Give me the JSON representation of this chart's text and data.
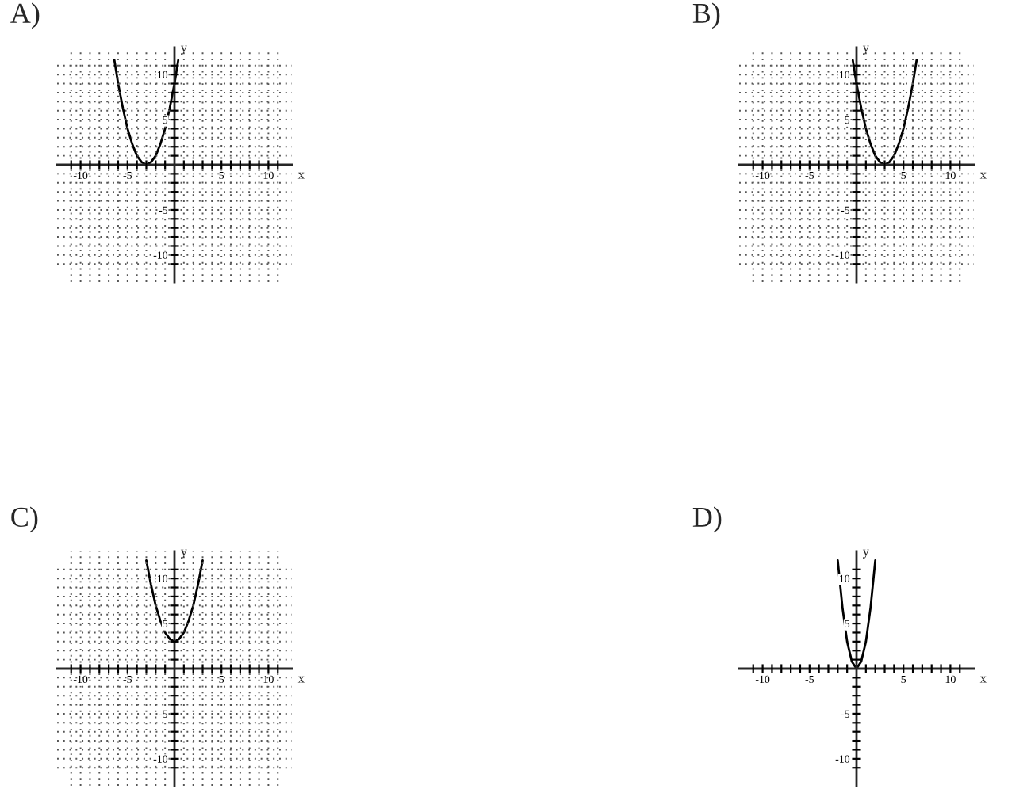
{
  "chart_data": [
    {
      "type": "line",
      "title": "A)",
      "xlabel": "x",
      "ylabel": "y",
      "grid": true,
      "legend": false,
      "xlim": [
        -12.5,
        12.5
      ],
      "ylim": [
        -13,
        13
      ],
      "xticks": [
        {
          "value": -11,
          "label": null
        },
        {
          "value": -10,
          "label": "-10"
        },
        {
          "value": -9,
          "label": null
        },
        {
          "value": -8,
          "label": null
        },
        {
          "value": -7,
          "label": null
        },
        {
          "value": -6,
          "label": null
        },
        {
          "value": -5,
          "label": "-5"
        },
        {
          "value": -4,
          "label": null
        },
        {
          "value": -3,
          "label": null
        },
        {
          "value": -2,
          "label": null
        },
        {
          "value": -1,
          "label": null
        },
        {
          "value": 1,
          "label": null
        },
        {
          "value": 2,
          "label": null
        },
        {
          "value": 3,
          "label": null
        },
        {
          "value": 4,
          "label": null
        },
        {
          "value": 5,
          "label": "5"
        },
        {
          "value": 6,
          "label": null
        },
        {
          "value": 7,
          "label": null
        },
        {
          "value": 8,
          "label": null
        },
        {
          "value": 9,
          "label": null
        },
        {
          "value": 10,
          "label": "10"
        },
        {
          "value": 11,
          "label": null
        }
      ],
      "yticks": [
        {
          "value": -11,
          "label": null
        },
        {
          "value": -10,
          "label": "-10"
        },
        {
          "value": -9,
          "label": null
        },
        {
          "value": -8,
          "label": null
        },
        {
          "value": -7,
          "label": null
        },
        {
          "value": -6,
          "label": null
        },
        {
          "value": -5,
          "label": "-5"
        },
        {
          "value": -4,
          "label": null
        },
        {
          "value": -3,
          "label": null
        },
        {
          "value": -2,
          "label": null
        },
        {
          "value": -1,
          "label": null
        },
        {
          "value": 1,
          "label": null
        },
        {
          "value": 2,
          "label": null
        },
        {
          "value": 3,
          "label": null
        },
        {
          "value": 4,
          "label": null
        },
        {
          "value": 5,
          "label": "5"
        },
        {
          "value": 6,
          "label": null
        },
        {
          "value": 7,
          "label": null
        },
        {
          "value": 8,
          "label": null
        },
        {
          "value": 9,
          "label": null
        },
        {
          "value": 10,
          "label": "10"
        },
        {
          "value": 11,
          "label": null
        }
      ],
      "series": [
        {
          "color": "#000000",
          "x": [
            -6.4,
            -6,
            -5.5,
            -5,
            -4.5,
            -4,
            -3.5,
            -3,
            -2.5,
            -2,
            -1.5,
            -1,
            -0.5,
            0,
            0.4
          ],
          "values": [
            11.6,
            9,
            6.3,
            4,
            2.3,
            1,
            0.3,
            0,
            0.3,
            1,
            2.3,
            4,
            6.3,
            9,
            11.6
          ]
        }
      ]
    },
    {
      "type": "line",
      "title": "B)",
      "xlabel": "x",
      "ylabel": "y",
      "grid": true,
      "legend": false,
      "xlim": [
        -12.5,
        12.5
      ],
      "ylim": [
        -13,
        13
      ],
      "xticks": [
        {
          "value": -11,
          "label": null
        },
        {
          "value": -10,
          "label": "-10"
        },
        {
          "value": -9,
          "label": null
        },
        {
          "value": -8,
          "label": null
        },
        {
          "value": -7,
          "label": null
        },
        {
          "value": -6,
          "label": null
        },
        {
          "value": -5,
          "label": "-5"
        },
        {
          "value": -4,
          "label": null
        },
        {
          "value": -3,
          "label": null
        },
        {
          "value": -2,
          "label": null
        },
        {
          "value": -1,
          "label": null
        },
        {
          "value": 1,
          "label": null
        },
        {
          "value": 2,
          "label": null
        },
        {
          "value": 3,
          "label": null
        },
        {
          "value": 4,
          "label": null
        },
        {
          "value": 5,
          "label": "5"
        },
        {
          "value": 6,
          "label": null
        },
        {
          "value": 7,
          "label": null
        },
        {
          "value": 8,
          "label": null
        },
        {
          "value": 9,
          "label": null
        },
        {
          "value": 10,
          "label": "10"
        },
        {
          "value": 11,
          "label": null
        }
      ],
      "yticks": [
        {
          "value": -11,
          "label": null
        },
        {
          "value": -10,
          "label": "-10"
        },
        {
          "value": -9,
          "label": null
        },
        {
          "value": -8,
          "label": null
        },
        {
          "value": -7,
          "label": null
        },
        {
          "value": -6,
          "label": null
        },
        {
          "value": -5,
          "label": "-5"
        },
        {
          "value": -4,
          "label": null
        },
        {
          "value": -3,
          "label": null
        },
        {
          "value": -2,
          "label": null
        },
        {
          "value": -1,
          "label": null
        },
        {
          "value": 1,
          "label": null
        },
        {
          "value": 2,
          "label": null
        },
        {
          "value": 3,
          "label": null
        },
        {
          "value": 4,
          "label": null
        },
        {
          "value": 5,
          "label": "5"
        },
        {
          "value": 6,
          "label": null
        },
        {
          "value": 7,
          "label": null
        },
        {
          "value": 8,
          "label": null
        },
        {
          "value": 9,
          "label": null
        },
        {
          "value": 10,
          "label": "10"
        },
        {
          "value": 11,
          "label": null
        }
      ],
      "series": [
        {
          "color": "#000000",
          "x": [
            -0.4,
            0,
            0.5,
            1,
            1.5,
            2,
            2.5,
            3,
            3.5,
            4,
            4.5,
            5,
            5.5,
            6,
            6.4
          ],
          "values": [
            11.6,
            9,
            6.3,
            4,
            2.3,
            1,
            0.3,
            0,
            0.3,
            1,
            2.3,
            4,
            6.3,
            9,
            11.6
          ]
        }
      ]
    },
    {
      "type": "line",
      "title": "C)",
      "xlabel": "x",
      "ylabel": "y",
      "grid": true,
      "legend": false,
      "xlim": [
        -12.5,
        12.5
      ],
      "ylim": [
        -13,
        13
      ],
      "xticks": [
        {
          "value": -11,
          "label": null
        },
        {
          "value": -10,
          "label": "-10"
        },
        {
          "value": -9,
          "label": null
        },
        {
          "value": -8,
          "label": null
        },
        {
          "value": -7,
          "label": null
        },
        {
          "value": -6,
          "label": null
        },
        {
          "value": -5,
          "label": "-5"
        },
        {
          "value": -4,
          "label": null
        },
        {
          "value": -3,
          "label": null
        },
        {
          "value": -2,
          "label": null
        },
        {
          "value": -1,
          "label": null
        },
        {
          "value": 1,
          "label": null
        },
        {
          "value": 2,
          "label": null
        },
        {
          "value": 3,
          "label": null
        },
        {
          "value": 4,
          "label": null
        },
        {
          "value": 5,
          "label": "5"
        },
        {
          "value": 6,
          "label": null
        },
        {
          "value": 7,
          "label": null
        },
        {
          "value": 8,
          "label": null
        },
        {
          "value": 9,
          "label": null
        },
        {
          "value": 10,
          "label": "10"
        },
        {
          "value": 11,
          "label": null
        }
      ],
      "yticks": [
        {
          "value": -11,
          "label": null
        },
        {
          "value": -10,
          "label": "-10"
        },
        {
          "value": -9,
          "label": null
        },
        {
          "value": -8,
          "label": null
        },
        {
          "value": -7,
          "label": null
        },
        {
          "value": -6,
          "label": null
        },
        {
          "value": -5,
          "label": "-5"
        },
        {
          "value": -4,
          "label": null
        },
        {
          "value": -3,
          "label": null
        },
        {
          "value": -2,
          "label": null
        },
        {
          "value": -1,
          "label": null
        },
        {
          "value": 1,
          "label": null
        },
        {
          "value": 2,
          "label": null
        },
        {
          "value": 3,
          "label": null
        },
        {
          "value": 4,
          "label": null
        },
        {
          "value": 5,
          "label": "5"
        },
        {
          "value": 6,
          "label": null
        },
        {
          "value": 7,
          "label": null
        },
        {
          "value": 8,
          "label": null
        },
        {
          "value": 9,
          "label": null
        },
        {
          "value": 10,
          "label": "10"
        },
        {
          "value": 11,
          "label": null
        }
      ],
      "series": [
        {
          "color": "#000000",
          "x": [
            -3,
            -2.5,
            -2,
            -1.5,
            -1,
            -0.5,
            0,
            0.5,
            1,
            1.5,
            2,
            2.5,
            3
          ],
          "values": [
            12,
            9.3,
            7,
            5.3,
            4,
            3.3,
            3,
            3.3,
            4,
            5.3,
            7,
            9.3,
            12
          ]
        }
      ]
    },
    {
      "type": "line",
      "title": "D)",
      "xlabel": "x",
      "ylabel": "y",
      "grid": false,
      "legend": false,
      "xlim": [
        -12.5,
        12.5
      ],
      "ylim": [
        -13,
        13
      ],
      "xticks": [
        {
          "value": -11,
          "label": null
        },
        {
          "value": -10,
          "label": "-10"
        },
        {
          "value": -9,
          "label": null
        },
        {
          "value": -8,
          "label": null
        },
        {
          "value": -7,
          "label": null
        },
        {
          "value": -6,
          "label": null
        },
        {
          "value": -5,
          "label": "-5"
        },
        {
          "value": -4,
          "label": null
        },
        {
          "value": -3,
          "label": null
        },
        {
          "value": -2,
          "label": null
        },
        {
          "value": -1,
          "label": null
        },
        {
          "value": 1,
          "label": null
        },
        {
          "value": 2,
          "label": null
        },
        {
          "value": 3,
          "label": null
        },
        {
          "value": 4,
          "label": null
        },
        {
          "value": 5,
          "label": "5"
        },
        {
          "value": 6,
          "label": null
        },
        {
          "value": 7,
          "label": null
        },
        {
          "value": 8,
          "label": null
        },
        {
          "value": 9,
          "label": null
        },
        {
          "value": 10,
          "label": "10"
        },
        {
          "value": 11,
          "label": null
        }
      ],
      "yticks": [
        {
          "value": -11,
          "label": null
        },
        {
          "value": -10,
          "label": "-10"
        },
        {
          "value": -9,
          "label": null
        },
        {
          "value": -8,
          "label": null
        },
        {
          "value": -7,
          "label": null
        },
        {
          "value": -6,
          "label": null
        },
        {
          "value": -5,
          "label": "-5"
        },
        {
          "value": -4,
          "label": null
        },
        {
          "value": -3,
          "label": null
        },
        {
          "value": -2,
          "label": null
        },
        {
          "value": -1,
          "label": null
        },
        {
          "value": 1,
          "label": null
        },
        {
          "value": 2,
          "label": null
        },
        {
          "value": 3,
          "label": null
        },
        {
          "value": 4,
          "label": null
        },
        {
          "value": 5,
          "label": "5"
        },
        {
          "value": 6,
          "label": null
        },
        {
          "value": 7,
          "label": null
        },
        {
          "value": 8,
          "label": null
        },
        {
          "value": 9,
          "label": null
        },
        {
          "value": 10,
          "label": "10"
        },
        {
          "value": 11,
          "label": null
        }
      ],
      "series": [
        {
          "color": "#000000",
          "x": [
            -2,
            -1.5,
            -1,
            -0.5,
            0,
            0.5,
            1,
            1.5,
            2
          ],
          "values": [
            12,
            6.8,
            3,
            0.8,
            0,
            0.8,
            3,
            6.8,
            12
          ]
        }
      ]
    }
  ]
}
